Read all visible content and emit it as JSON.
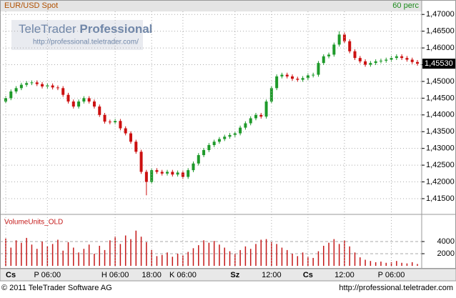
{
  "header": {
    "symbol": "EUR/USD Spot",
    "interval": "60 perc"
  },
  "watermark": {
    "brand": "TeleTrader",
    "product": "Professional",
    "url": "http://professional.teletrader.com/"
  },
  "footer": {
    "copyright": "© 2011 TeleTrader Software AG",
    "url": "http://professional.teletrader.com"
  },
  "chart_data": [
    {
      "type": "candlestick",
      "up_color": "#1e9a2a",
      "down_color": "#cc1010",
      "categories": [
        "Cs",
        null,
        null,
        null,
        null,
        null,
        null,
        null,
        "P 06:00",
        null,
        null,
        null,
        null,
        null,
        null,
        null,
        null,
        null,
        null,
        null,
        null,
        "H 06:00",
        null,
        null,
        null,
        null,
        null,
        null,
        "18:00",
        null,
        null,
        null,
        null,
        null,
        "K 06:00",
        null,
        null,
        null,
        null,
        null,
        null,
        null,
        null,
        null,
        "Sz",
        null,
        null,
        null,
        null,
        null,
        null,
        "12:00",
        null,
        null,
        null,
        null,
        null,
        null,
        "Cs",
        null,
        null,
        null,
        null,
        null,
        null,
        "12:00",
        null,
        null,
        null,
        null,
        null,
        null,
        null,
        null,
        "P 06:00",
        null,
        null,
        null,
        null,
        null
      ],
      "open": [
        1.444,
        1.445,
        1.447,
        1.448,
        1.449,
        1.4495,
        1.4497,
        1.4492,
        1.4485,
        1.4488,
        1.4482,
        1.448,
        1.446,
        1.444,
        1.4425,
        1.444,
        1.445,
        1.444,
        1.4425,
        1.44,
        1.438,
        1.4378,
        1.4382,
        1.436,
        1.4345,
        1.432,
        1.429,
        1.423,
        1.42,
        1.4235,
        1.423,
        1.4225,
        1.423,
        1.4222,
        1.4228,
        1.4215,
        1.4235,
        1.4255,
        1.428,
        1.4295,
        1.431,
        1.432,
        1.4328,
        1.4335,
        1.434,
        1.4345,
        1.4362,
        1.4375,
        1.439,
        1.44,
        1.4395,
        1.444,
        1.448,
        1.4515,
        1.452,
        1.4515,
        1.4508,
        1.4505,
        1.451,
        1.4518,
        1.452,
        1.4555,
        1.4575,
        1.458,
        1.461,
        1.464,
        1.462,
        1.459,
        1.457,
        1.456,
        1.455,
        1.4555,
        1.456,
        1.4562,
        1.4565,
        1.457,
        1.4575,
        1.457,
        1.4565,
        1.4558
      ],
      "high": [
        1.4456,
        1.4476,
        1.4486,
        1.4496,
        1.4501,
        1.4503,
        1.4503,
        1.4498,
        1.4494,
        1.4494,
        1.4488,
        1.4486,
        1.4466,
        1.4446,
        1.4446,
        1.4456,
        1.4456,
        1.4446,
        1.4431,
        1.4406,
        1.4386,
        1.4388,
        1.4388,
        1.4366,
        1.4351,
        1.4326,
        1.4296,
        1.4236,
        1.4241,
        1.4241,
        1.4236,
        1.4236,
        1.4236,
        1.4234,
        1.4234,
        1.4241,
        1.4261,
        1.4286,
        1.4301,
        1.4316,
        1.4326,
        1.4334,
        1.4341,
        1.4346,
        1.4351,
        1.4368,
        1.4381,
        1.4396,
        1.4406,
        1.4406,
        1.4446,
        1.4486,
        1.4521,
        1.4526,
        1.4526,
        1.4521,
        1.4514,
        1.4516,
        1.4524,
        1.4526,
        1.4561,
        1.4581,
        1.4586,
        1.4616,
        1.465,
        1.4646,
        1.4626,
        1.4596,
        1.4576,
        1.4566,
        1.4561,
        1.4566,
        1.4568,
        1.4571,
        1.4576,
        1.4581,
        1.4581,
        1.4576,
        1.4571,
        1.4564
      ],
      "low": [
        1.4434,
        1.4444,
        1.4464,
        1.4474,
        1.4484,
        1.4489,
        1.4486,
        1.4479,
        1.4479,
        1.4476,
        1.4474,
        1.4454,
        1.4434,
        1.4419,
        1.4419,
        1.4434,
        1.4434,
        1.4419,
        1.4394,
        1.4374,
        1.4372,
        1.4372,
        1.4354,
        1.4339,
        1.4314,
        1.4284,
        1.4224,
        1.416,
        1.4194,
        1.4224,
        1.4219,
        1.4219,
        1.4216,
        1.4216,
        1.4209,
        1.4209,
        1.4229,
        1.4249,
        1.4274,
        1.4289,
        1.4304,
        1.4314,
        1.4322,
        1.4329,
        1.4334,
        1.4339,
        1.4356,
        1.4369,
        1.4384,
        1.4389,
        1.4389,
        1.4434,
        1.4474,
        1.4509,
        1.4509,
        1.4502,
        1.4499,
        1.4499,
        1.4504,
        1.4512,
        1.4514,
        1.4549,
        1.4569,
        1.4574,
        1.4604,
        1.4614,
        1.4584,
        1.4564,
        1.4554,
        1.4544,
        1.4544,
        1.4549,
        1.4554,
        1.4556,
        1.4559,
        1.4564,
        1.4564,
        1.4559,
        1.4552,
        1.4547
      ],
      "close": [
        1.445,
        1.447,
        1.448,
        1.449,
        1.4495,
        1.4497,
        1.4492,
        1.4485,
        1.4488,
        1.4482,
        1.448,
        1.446,
        1.444,
        1.4425,
        1.444,
        1.445,
        1.444,
        1.4425,
        1.44,
        1.438,
        1.4378,
        1.4382,
        1.436,
        1.4345,
        1.432,
        1.429,
        1.423,
        1.42,
        1.4235,
        1.423,
        1.4225,
        1.423,
        1.4222,
        1.4228,
        1.4215,
        1.4235,
        1.4255,
        1.428,
        1.4295,
        1.431,
        1.432,
        1.4328,
        1.4335,
        1.434,
        1.4345,
        1.4362,
        1.4375,
        1.439,
        1.44,
        1.4395,
        1.444,
        1.448,
        1.4515,
        1.452,
        1.4515,
        1.4508,
        1.4505,
        1.451,
        1.4518,
        1.452,
        1.4555,
        1.4575,
        1.458,
        1.461,
        1.464,
        1.462,
        1.459,
        1.457,
        1.456,
        1.455,
        1.4555,
        1.456,
        1.4562,
        1.4565,
        1.457,
        1.4575,
        1.457,
        1.4565,
        1.4558,
        1.4553
      ],
      "ylim": [
        1.4103,
        1.4709
      ],
      "yticks": [
        {
          "value": 1.47,
          "label": "1,47000"
        },
        {
          "value": 1.465,
          "label": "1,46500"
        },
        {
          "value": 1.46,
          "label": "1,46000"
        },
        {
          "value": 1.455,
          "label": "1,45500"
        },
        {
          "value": 1.45,
          "label": "1,45000"
        },
        {
          "value": 1.445,
          "label": "1,44500"
        },
        {
          "value": 1.44,
          "label": "1,44000"
        },
        {
          "value": 1.435,
          "label": "1,43500"
        },
        {
          "value": 1.43,
          "label": "1,43000"
        },
        {
          "value": 1.425,
          "label": "1,42500"
        },
        {
          "value": 1.42,
          "label": "1,42000"
        },
        {
          "value": 1.415,
          "label": "1,41500"
        }
      ],
      "last_price": {
        "value": 1.4553,
        "label": "1,45530"
      },
      "grid": true
    },
    {
      "type": "bar",
      "title": "VolumeUnits_OLD",
      "color": "#c41818",
      "values": [
        4500,
        3000,
        4200,
        3800,
        4600,
        3500,
        2800,
        4000,
        3200,
        3600,
        4300,
        2500,
        3900,
        3000,
        2200,
        2800,
        3500,
        2000,
        3300,
        2600,
        4200,
        4800,
        3600,
        5000,
        4400,
        5800,
        4800,
        3900,
        2600,
        1600,
        1800,
        2200,
        1500,
        2000,
        1700,
        2300,
        2900,
        3400,
        4200,
        3800,
        4100,
        3500,
        3000,
        2400,
        2000,
        2600,
        3200,
        2800,
        3600,
        4300,
        4400,
        3900,
        3600,
        3000,
        2600,
        2000,
        1600,
        2200,
        1500,
        1300,
        2400,
        3300,
        3800,
        4400,
        3600,
        4200,
        3200,
        2200,
        1400,
        1000,
        800,
        600,
        700,
        500,
        600,
        800,
        500,
        400,
        600,
        300
      ],
      "ylim": [
        0,
        8000
      ],
      "yticks": [
        2000,
        4000
      ],
      "grid": true
    }
  ]
}
